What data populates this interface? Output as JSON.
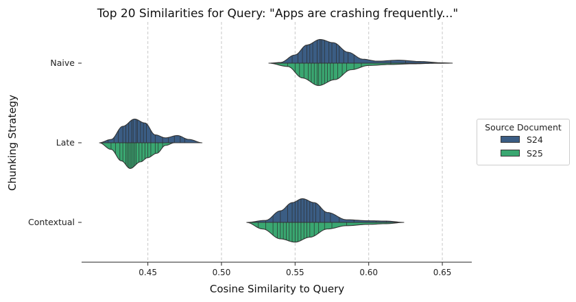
{
  "chart_data": {
    "type": "violin",
    "orientation": "horizontal",
    "split": true,
    "title": "Top 20 Similarities for Query: \"Apps are crashing frequently...\"",
    "xlabel": "Cosine Similarity to Query",
    "ylabel": "Chunking Strategy",
    "xlim": [
      0.405,
      0.67
    ],
    "xticks": [
      "0.45",
      "0.50",
      "0.55",
      "0.60",
      "0.65"
    ],
    "xtick_values": [
      0.45,
      0.5,
      0.55,
      0.6,
      0.65
    ],
    "categories": [
      "Naive",
      "Late",
      "Contextual"
    ],
    "grid": "x-dashed",
    "legend": {
      "title": "Source Document",
      "placement": "right",
      "entries": [
        "S24",
        "S25"
      ]
    },
    "series": [
      {
        "name": "S24",
        "color": "#3b5d84",
        "side": "upper",
        "groups": [
          {
            "category": "Naive",
            "sticks": [
              0.538,
              0.548,
              0.552,
              0.555,
              0.558,
              0.56,
              0.562,
              0.565,
              0.567,
              0.568,
              0.57,
              0.573,
              0.575,
              0.578,
              0.58,
              0.583,
              0.586,
              0.59,
              0.615,
              0.625
            ],
            "profile": [
              [
                0.532,
                0.0
              ],
              [
                0.54,
                0.02
              ],
              [
                0.55,
                0.25
              ],
              [
                0.558,
                0.55
              ],
              [
                0.567,
                0.72
              ],
              [
                0.576,
                0.62
              ],
              [
                0.586,
                0.33
              ],
              [
                0.596,
                0.12
              ],
              [
                0.606,
                0.06
              ],
              [
                0.62,
                0.09
              ],
              [
                0.635,
                0.05
              ],
              [
                0.65,
                0.01
              ],
              [
                0.657,
                0.0
              ]
            ]
          },
          {
            "category": "Late",
            "sticks": [
              0.423,
              0.427,
              0.43,
              0.433,
              0.435,
              0.437,
              0.439,
              0.44,
              0.442,
              0.443,
              0.445,
              0.447,
              0.449,
              0.452,
              0.455,
              0.46,
              0.464,
              0.468,
              0.472,
              0.475
            ],
            "profile": [
              [
                0.417,
                0.0
              ],
              [
                0.425,
                0.1
              ],
              [
                0.433,
                0.5
              ],
              [
                0.441,
                0.72
              ],
              [
                0.448,
                0.6
              ],
              [
                0.455,
                0.24
              ],
              [
                0.462,
                0.15
              ],
              [
                0.47,
                0.22
              ],
              [
                0.478,
                0.1
              ],
              [
                0.487,
                0.0
              ]
            ]
          },
          {
            "category": "Contextual",
            "sticks": [
              0.53,
              0.535,
              0.54,
              0.545,
              0.548,
              0.55,
              0.552,
              0.554,
              0.556,
              0.558,
              0.56,
              0.562,
              0.564,
              0.567,
              0.57,
              0.574,
              0.58,
              0.59,
              0.605,
              0.612
            ],
            "profile": [
              [
                0.517,
                0.0
              ],
              [
                0.53,
                0.06
              ],
              [
                0.54,
                0.35
              ],
              [
                0.548,
                0.6
              ],
              [
                0.555,
                0.72
              ],
              [
                0.563,
                0.6
              ],
              [
                0.572,
                0.3
              ],
              [
                0.585,
                0.08
              ],
              [
                0.6,
                0.05
              ],
              [
                0.612,
                0.04
              ],
              [
                0.624,
                0.0
              ]
            ]
          }
        ]
      },
      {
        "name": "S25",
        "color": "#3aa771",
        "side": "lower",
        "groups": [
          {
            "category": "Naive",
            "sticks": [
              0.545,
              0.55,
              0.553,
              0.556,
              0.559,
              0.561,
              0.563,
              0.565,
              0.566,
              0.568,
              0.57,
              0.572,
              0.574,
              0.576,
              0.579,
              0.582,
              0.585,
              0.59,
              0.595,
              0.615
            ],
            "profile": [
              [
                0.532,
                0.0
              ],
              [
                0.545,
                0.1
              ],
              [
                0.555,
                0.45
              ],
              [
                0.566,
                0.68
              ],
              [
                0.577,
                0.5
              ],
              [
                0.588,
                0.2
              ],
              [
                0.6,
                0.07
              ],
              [
                0.615,
                0.04
              ],
              [
                0.63,
                0.02
              ],
              [
                0.645,
                0.005
              ],
              [
                0.657,
                0.0
              ]
            ]
          },
          {
            "category": "Late",
            "sticks": [
              0.425,
              0.428,
              0.431,
              0.433,
              0.435,
              0.436,
              0.437,
              0.438,
              0.439,
              0.44,
              0.441,
              0.442,
              0.444,
              0.446,
              0.448,
              0.45,
              0.452,
              0.455,
              0.457,
              0.46
            ],
            "profile": [
              [
                0.417,
                0.0
              ],
              [
                0.425,
                0.2
              ],
              [
                0.432,
                0.55
              ],
              [
                0.438,
                0.78
              ],
              [
                0.445,
                0.58
              ],
              [
                0.45,
                0.45
              ],
              [
                0.456,
                0.32
              ],
              [
                0.462,
                0.08
              ],
              [
                0.468,
                0.0
              ]
            ]
          },
          {
            "category": "Contextual",
            "sticks": [
              0.525,
              0.53,
              0.535,
              0.538,
              0.54,
              0.542,
              0.544,
              0.546,
              0.548,
              0.55,
              0.552,
              0.554,
              0.556,
              0.558,
              0.56,
              0.563,
              0.566,
              0.57,
              0.575,
              0.585
            ],
            "profile": [
              [
                0.517,
                0.0
              ],
              [
                0.528,
                0.2
              ],
              [
                0.54,
                0.5
              ],
              [
                0.55,
                0.6
              ],
              [
                0.56,
                0.45
              ],
              [
                0.572,
                0.2
              ],
              [
                0.585,
                0.1
              ],
              [
                0.6,
                0.06
              ],
              [
                0.612,
                0.04
              ],
              [
                0.624,
                0.0
              ]
            ]
          }
        ]
      }
    ]
  }
}
